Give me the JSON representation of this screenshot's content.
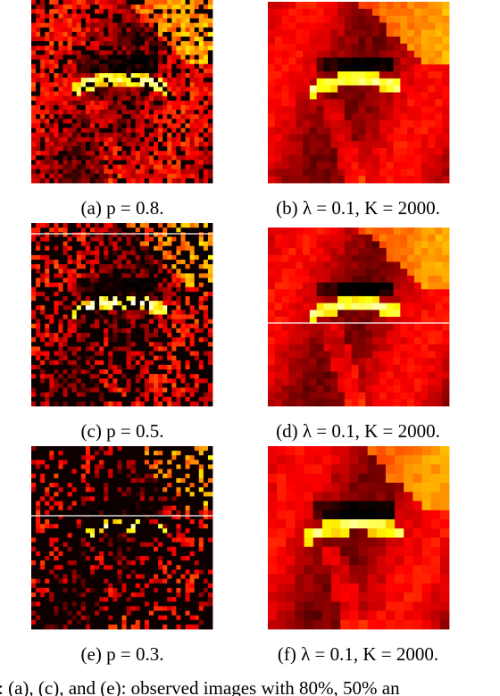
{
  "panels": [
    {
      "caption": "(a) p = 0.8."
    },
    {
      "caption": "(b) λ = 0.1, K = 2000."
    },
    {
      "caption": "(c) p = 0.5."
    },
    {
      "caption": "(d) λ = 0.1, K = 2000."
    },
    {
      "caption": "(e) p = 0.3."
    },
    {
      "caption": "(f) λ = 0.1, K = 2000."
    }
  ],
  "footer": ": (a), (c), and (e): observed images with 80%, 50% an"
}
